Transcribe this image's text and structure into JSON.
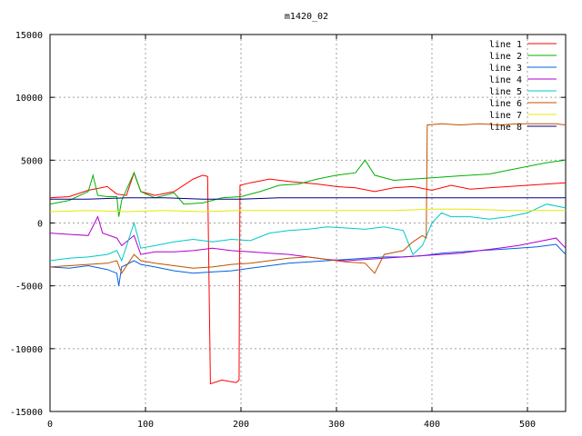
{
  "chart_data": {
    "type": "line",
    "title": "m1420_02",
    "xlabel": "",
    "ylabel": "",
    "xlim": [
      0,
      540
    ],
    "ylim": [
      -15000,
      15000
    ],
    "x_ticks": [
      0,
      100,
      200,
      300,
      400,
      500
    ],
    "y_ticks": [
      -15000,
      -10000,
      -5000,
      0,
      5000,
      10000,
      15000
    ],
    "grid": true,
    "legend_position": "top-right",
    "series": [
      {
        "name": "line 1",
        "color": "#ff0000",
        "points": [
          [
            0,
            2000
          ],
          [
            20,
            2100
          ],
          [
            40,
            2600
          ],
          [
            60,
            2900
          ],
          [
            70,
            2300
          ],
          [
            80,
            2200
          ],
          [
            88,
            4000
          ],
          [
            95,
            2500
          ],
          [
            110,
            2200
          ],
          [
            130,
            2500
          ],
          [
            150,
            3500
          ],
          [
            160,
            3800
          ],
          [
            165,
            3700
          ],
          [
            168,
            -12800
          ],
          [
            180,
            -12500
          ],
          [
            195,
            -12700
          ],
          [
            198,
            -12500
          ],
          [
            199,
            3000
          ],
          [
            210,
            3200
          ],
          [
            230,
            3500
          ],
          [
            250,
            3300
          ],
          [
            280,
            3100
          ],
          [
            300,
            2900
          ],
          [
            320,
            2800
          ],
          [
            340,
            2500
          ],
          [
            360,
            2800
          ],
          [
            380,
            2900
          ],
          [
            400,
            2600
          ],
          [
            420,
            3000
          ],
          [
            440,
            2700
          ],
          [
            460,
            2800
          ],
          [
            480,
            2900
          ],
          [
            500,
            3000
          ],
          [
            520,
            3100
          ],
          [
            540,
            3200
          ]
        ]
      },
      {
        "name": "line 2",
        "color": "#00b000",
        "points": [
          [
            0,
            1500
          ],
          [
            20,
            1800
          ],
          [
            40,
            2500
          ],
          [
            45,
            3800
          ],
          [
            50,
            2200
          ],
          [
            60,
            2100
          ],
          [
            70,
            2100
          ],
          [
            72,
            500
          ],
          [
            75,
            1800
          ],
          [
            88,
            4000
          ],
          [
            95,
            2500
          ],
          [
            110,
            2000
          ],
          [
            130,
            2400
          ],
          [
            140,
            1500
          ],
          [
            160,
            1600
          ],
          [
            170,
            1800
          ],
          [
            180,
            2000
          ],
          [
            200,
            2100
          ],
          [
            220,
            2500
          ],
          [
            240,
            3000
          ],
          [
            260,
            3100
          ],
          [
            280,
            3500
          ],
          [
            300,
            3800
          ],
          [
            320,
            4000
          ],
          [
            330,
            5000
          ],
          [
            340,
            3800
          ],
          [
            360,
            3400
          ],
          [
            380,
            3500
          ],
          [
            400,
            3600
          ],
          [
            420,
            3700
          ],
          [
            440,
            3800
          ],
          [
            460,
            3900
          ],
          [
            480,
            4200
          ],
          [
            500,
            4500
          ],
          [
            520,
            4800
          ],
          [
            540,
            5000
          ]
        ]
      },
      {
        "name": "line 3",
        "color": "#0060e0",
        "points": [
          [
            0,
            -3500
          ],
          [
            20,
            -3600
          ],
          [
            40,
            -3400
          ],
          [
            60,
            -3700
          ],
          [
            70,
            -4000
          ],
          [
            72,
            -5000
          ],
          [
            75,
            -3500
          ],
          [
            88,
            -3000
          ],
          [
            95,
            -3300
          ],
          [
            110,
            -3500
          ],
          [
            130,
            -3800
          ],
          [
            150,
            -4000
          ],
          [
            170,
            -3900
          ],
          [
            190,
            -3800
          ],
          [
            210,
            -3600
          ],
          [
            230,
            -3400
          ],
          [
            250,
            -3200
          ],
          [
            270,
            -3100
          ],
          [
            290,
            -3000
          ],
          [
            310,
            -2900
          ],
          [
            330,
            -2800
          ],
          [
            350,
            -2700
          ],
          [
            370,
            -2700
          ],
          [
            390,
            -2600
          ],
          [
            410,
            -2400
          ],
          [
            430,
            -2300
          ],
          [
            450,
            -2200
          ],
          [
            470,
            -2100
          ],
          [
            490,
            -2000
          ],
          [
            510,
            -1900
          ],
          [
            530,
            -1700
          ],
          [
            540,
            -2500
          ]
        ]
      },
      {
        "name": "line 4",
        "color": "#b000d0",
        "points": [
          [
            0,
            -800
          ],
          [
            20,
            -900
          ],
          [
            40,
            -1000
          ],
          [
            50,
            500
          ],
          [
            55,
            -800
          ],
          [
            70,
            -1200
          ],
          [
            75,
            -1800
          ],
          [
            88,
            -1000
          ],
          [
            95,
            -2500
          ],
          [
            110,
            -2300
          ],
          [
            130,
            -2300
          ],
          [
            150,
            -2200
          ],
          [
            170,
            -2000
          ],
          [
            190,
            -2200
          ],
          [
            210,
            -2300
          ],
          [
            230,
            -2400
          ],
          [
            250,
            -2500
          ],
          [
            270,
            -2700
          ],
          [
            290,
            -2900
          ],
          [
            310,
            -3000
          ],
          [
            330,
            -2900
          ],
          [
            350,
            -2800
          ],
          [
            370,
            -2700
          ],
          [
            390,
            -2600
          ],
          [
            410,
            -2500
          ],
          [
            430,
            -2400
          ],
          [
            450,
            -2200
          ],
          [
            470,
            -2000
          ],
          [
            490,
            -1800
          ],
          [
            510,
            -1500
          ],
          [
            530,
            -1200
          ],
          [
            540,
            -2000
          ]
        ]
      },
      {
        "name": "line 5",
        "color": "#00c8c8",
        "points": [
          [
            0,
            -3000
          ],
          [
            20,
            -2800
          ],
          [
            40,
            -2700
          ],
          [
            60,
            -2500
          ],
          [
            70,
            -2200
          ],
          [
            75,
            -3000
          ],
          [
            88,
            0
          ],
          [
            95,
            -2000
          ],
          [
            110,
            -1800
          ],
          [
            130,
            -1500
          ],
          [
            150,
            -1300
          ],
          [
            170,
            -1500
          ],
          [
            190,
            -1300
          ],
          [
            210,
            -1400
          ],
          [
            230,
            -800
          ],
          [
            250,
            -600
          ],
          [
            270,
            -500
          ],
          [
            290,
            -300
          ],
          [
            310,
            -400
          ],
          [
            330,
            -500
          ],
          [
            350,
            -300
          ],
          [
            370,
            -600
          ],
          [
            380,
            -2500
          ],
          [
            390,
            -1800
          ],
          [
            400,
            0
          ],
          [
            410,
            800
          ],
          [
            420,
            500
          ],
          [
            440,
            500
          ],
          [
            460,
            300
          ],
          [
            480,
            500
          ],
          [
            500,
            800
          ],
          [
            520,
            1500
          ],
          [
            540,
            1200
          ]
        ]
      },
      {
        "name": "line 6",
        "color": "#c05000",
        "points": [
          [
            0,
            -3500
          ],
          [
            20,
            -3400
          ],
          [
            40,
            -3300
          ],
          [
            60,
            -3200
          ],
          [
            70,
            -3000
          ],
          [
            75,
            -4000
          ],
          [
            88,
            -2500
          ],
          [
            95,
            -3000
          ],
          [
            110,
            -3200
          ],
          [
            130,
            -3400
          ],
          [
            150,
            -3600
          ],
          [
            170,
            -3500
          ],
          [
            190,
            -3300
          ],
          [
            210,
            -3200
          ],
          [
            230,
            -3000
          ],
          [
            250,
            -2800
          ],
          [
            270,
            -2700
          ],
          [
            290,
            -2900
          ],
          [
            310,
            -3100
          ],
          [
            330,
            -3200
          ],
          [
            340,
            -4000
          ],
          [
            350,
            -2500
          ],
          [
            370,
            -2200
          ],
          [
            380,
            -1500
          ],
          [
            390,
            -1000
          ],
          [
            394,
            -1200
          ],
          [
            395,
            7800
          ],
          [
            410,
            7900
          ],
          [
            430,
            7800
          ],
          [
            450,
            7900
          ],
          [
            470,
            7800
          ],
          [
            490,
            7900
          ],
          [
            510,
            7900
          ],
          [
            530,
            7900
          ],
          [
            540,
            7800
          ]
        ]
      },
      {
        "name": "line 7",
        "color": "#e8e800",
        "points": [
          [
            0,
            900
          ],
          [
            40,
            1000
          ],
          [
            80,
            900
          ],
          [
            120,
            1000
          ],
          [
            160,
            900
          ],
          [
            200,
            1000
          ],
          [
            240,
            1000
          ],
          [
            280,
            1000
          ],
          [
            320,
            1000
          ],
          [
            360,
            1000
          ],
          [
            400,
            1100
          ],
          [
            440,
            1100
          ],
          [
            480,
            1000
          ],
          [
            520,
            1000
          ],
          [
            540,
            1000
          ]
        ]
      },
      {
        "name": "line 8",
        "color": "#000080",
        "points": [
          [
            0,
            1900
          ],
          [
            40,
            1900
          ],
          [
            80,
            2000
          ],
          [
            120,
            2000
          ],
          [
            160,
            1900
          ],
          [
            200,
            1900
          ],
          [
            240,
            2000
          ],
          [
            280,
            2000
          ],
          [
            320,
            2000
          ],
          [
            360,
            2000
          ],
          [
            400,
            2000
          ],
          [
            440,
            2000
          ],
          [
            480,
            2000
          ],
          [
            520,
            2000
          ],
          [
            540,
            2000
          ]
        ]
      }
    ]
  }
}
